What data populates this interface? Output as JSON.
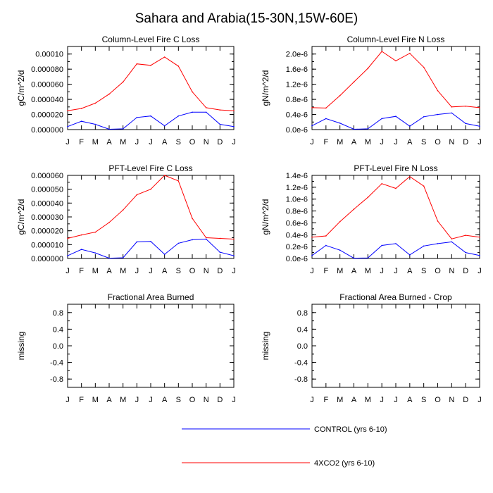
{
  "title": "Sahara and Arabia(15-30N,15W-60E)",
  "months": [
    "J",
    "F",
    "M",
    "A",
    "M",
    "J",
    "J",
    "A",
    "S",
    "O",
    "N",
    "D",
    "J"
  ],
  "legend": [
    {
      "label": "CONTROL (yrs 6-10)",
      "color": "#0000ff"
    },
    {
      "label": "4XCO2 (yrs 6-10)",
      "color": "#ff0000"
    }
  ],
  "chart_data": [
    {
      "type": "line",
      "title": "Column-Level Fire C Loss",
      "ylabel": "gC/m^2/d",
      "ylim": [
        0,
        0.00011
      ],
      "yticks": [
        "0.000000",
        "0.000020",
        "0.000040",
        "0.000060",
        "0.000080",
        "0.00010"
      ],
      "ytick_values": [
        0,
        2e-05,
        4e-05,
        6e-05,
        8e-05,
        0.0001
      ],
      "minor_step": 1e-05,
      "series": [
        {
          "name": "CONTROL (yrs 6-10)",
          "color": "#0000ff",
          "values": [
            4e-06,
            1.1e-05,
            7e-06,
            5e-07,
            1e-06,
            1.6e-05,
            1.8e-05,
            5e-06,
            1.8e-05,
            2.3e-05,
            2.3e-05,
            7e-06,
            4e-06
          ]
        },
        {
          "name": "4XCO2 (yrs 6-10)",
          "color": "#ff0000",
          "values": [
            2.5e-05,
            2.8e-05,
            3.5e-05,
            4.7e-05,
            6.3e-05,
            8.7e-05,
            8.5e-05,
            9.6e-05,
            8.4e-05,
            5e-05,
            2.9e-05,
            2.6e-05,
            2.5e-05
          ]
        }
      ]
    },
    {
      "type": "line",
      "title": "Column-Level Fire N Loss",
      "ylabel": "gN/m^2/d",
      "ylim": [
        0,
        2.2e-06
      ],
      "yticks": [
        "0.0e-6",
        "0.4e-6",
        "0.8e-6",
        "1.2e-6",
        "1.6e-6",
        "2.0e-6"
      ],
      "ytick_values": [
        0,
        4e-07,
        8e-07,
        1.2e-06,
        1.6e-06,
        2e-06
      ],
      "minor_step": 2e-07,
      "series": [
        {
          "name": "CONTROL (yrs 6-10)",
          "color": "#0000ff",
          "values": [
            1e-07,
            2.9e-07,
            1.7e-07,
            1e-08,
            2e-08,
            2.9e-07,
            3.5e-07,
            9e-08,
            3.4e-07,
            4e-07,
            4.4e-07,
            1.6e-07,
            9e-08
          ]
        },
        {
          "name": "4XCO2 (yrs 6-10)",
          "color": "#ff0000",
          "values": [
            5.8e-07,
            5.7e-07,
            9e-07,
            1.26e-06,
            1.62e-06,
            2.07e-06,
            1.82e-06,
            2.02e-06,
            1.65e-06,
            1.03e-06,
            6e-07,
            6.2e-07,
            5.8e-07
          ]
        }
      ]
    },
    {
      "type": "line",
      "title": "PFT-Level Fire C Loss",
      "ylabel": "gC/m^2/d",
      "ylim": [
        0,
        6e-05
      ],
      "yticks": [
        "0.000000",
        "0.000010",
        "0.000020",
        "0.000030",
        "0.000040",
        "0.000050",
        "0.000060"
      ],
      "ytick_values": [
        0,
        1e-05,
        2e-05,
        3e-05,
        4e-05,
        5e-05,
        6e-05
      ],
      "minor_step": 5e-06,
      "series": [
        {
          "name": "CONTROL (yrs 6-10)",
          "color": "#0000ff",
          "values": [
            2e-06,
            6.5e-06,
            4e-06,
            2e-07,
            5e-07,
            1.2e-05,
            1.23e-05,
            3e-06,
            1.1e-05,
            1.35e-05,
            1.4e-05,
            4.5e-06,
            2e-06
          ]
        },
        {
          "name": "4XCO2 (yrs 6-10)",
          "color": "#ff0000",
          "values": [
            1.45e-05,
            1.7e-05,
            1.9e-05,
            2.6e-05,
            3.5e-05,
            4.6e-05,
            5e-05,
            6e-05,
            5.6e-05,
            2.9e-05,
            1.5e-05,
            1.45e-05,
            1.4e-05
          ]
        }
      ]
    },
    {
      "type": "line",
      "title": "PFT-Level Fire N Loss",
      "ylabel": "gN/m^2/d",
      "ylim": [
        0,
        1.4e-06
      ],
      "yticks": [
        "0.0e-6",
        "0.2e-6",
        "0.4e-6",
        "0.6e-6",
        "0.8e-6",
        "1.0e-6",
        "1.2e-6",
        "1.4e-6"
      ],
      "ytick_values": [
        0,
        2e-07,
        4e-07,
        6e-07,
        8e-07,
        1e-06,
        1.2e-06,
        1.4e-06
      ],
      "minor_step": 1e-07,
      "series": [
        {
          "name": "CONTROL (yrs 6-10)",
          "color": "#0000ff",
          "values": [
            5e-08,
            2.2e-07,
            1.4e-07,
            5e-09,
            1e-08,
            2.2e-07,
            2.5e-07,
            6e-08,
            2.1e-07,
            2.5e-07,
            2.8e-07,
            1e-07,
            5e-08
          ]
        },
        {
          "name": "4XCO2 (yrs 6-10)",
          "color": "#ff0000",
          "values": [
            3.6e-07,
            3.8e-07,
            6.2e-07,
            8.3e-07,
            1.03e-06,
            1.26e-06,
            1.18e-06,
            1.38e-06,
            1.22e-06,
            6.3e-07,
            3.3e-07,
            3.9e-07,
            3.6e-07
          ]
        }
      ]
    },
    {
      "type": "line",
      "title": "Fractional Area Burned",
      "ylabel": "missing",
      "ylim": [
        -1,
        1
      ],
      "yticks": [
        "-0.8",
        "-0.4",
        "0.0",
        "0.4",
        "0.8"
      ],
      "ytick_values": [
        -0.8,
        -0.4,
        0,
        0.4,
        0.8
      ],
      "minor_step": 0.2,
      "series": []
    },
    {
      "type": "line",
      "title": "Fractional Area Burned - Crop",
      "ylabel": "missing",
      "ylim": [
        -1,
        1
      ],
      "yticks": [
        "-0.8",
        "-0.4",
        "0.0",
        "0.4",
        "0.8"
      ],
      "ytick_values": [
        -0.8,
        -0.4,
        0,
        0.4,
        0.8
      ],
      "minor_step": 0.2,
      "series": []
    }
  ]
}
